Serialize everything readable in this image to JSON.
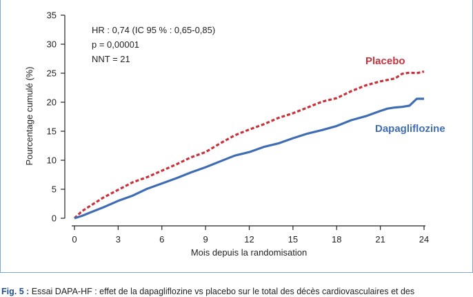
{
  "chart_data": {
    "type": "line",
    "xlabel": "Mois depuis la randomisation",
    "ylabel": "Pourcentage cumulé (%)",
    "xlim": [
      0,
      24
    ],
    "ylim": [
      0,
      35
    ],
    "x_ticks": [
      "0",
      "3",
      "6",
      "9",
      "12",
      "15",
      "18",
      "21",
      "24"
    ],
    "y_ticks": [
      "0",
      "5",
      "10",
      "15",
      "20",
      "25",
      "30",
      "35"
    ],
    "grid": false,
    "annotations": [
      "HR : 0,74 (IC 95 % : 0,65-0,85)",
      "p = 0,00001",
      "NNT = 21"
    ],
    "series": [
      {
        "name": "Placebo",
        "color": "#c8323c",
        "style": "dashed",
        "x": [
          0,
          0.5,
          1,
          1.5,
          2,
          3,
          4,
          5,
          6,
          7,
          8,
          9,
          10,
          11,
          12,
          13,
          14,
          15,
          16,
          17,
          18,
          19,
          20,
          21,
          22,
          22.5,
          23,
          23.5,
          24
        ],
        "y": [
          0,
          1.2,
          2.0,
          2.8,
          3.6,
          4.9,
          6.2,
          7.1,
          8.2,
          9.3,
          10.5,
          11.4,
          12.9,
          14.3,
          15.3,
          16.2,
          17.3,
          18.1,
          19.1,
          20.1,
          20.7,
          21.9,
          22.9,
          23.6,
          24.1,
          24.9,
          25.1,
          25.0,
          25.3
        ]
      },
      {
        "name": "Dapagliflozine",
        "color": "#3f6db3",
        "style": "solid",
        "x": [
          0,
          0.5,
          1,
          2,
          3,
          4,
          5,
          6,
          7,
          8,
          9,
          10,
          11,
          12,
          13,
          14,
          15,
          16,
          17,
          18,
          19,
          20,
          21,
          21.5,
          22,
          22.5,
          23,
          23.5,
          24
        ],
        "y": [
          0,
          0.4,
          0.9,
          1.9,
          3.0,
          3.9,
          5.1,
          6.0,
          6.9,
          7.9,
          8.8,
          9.8,
          10.8,
          11.4,
          12.3,
          12.9,
          13.8,
          14.6,
          15.2,
          15.9,
          16.9,
          17.6,
          18.5,
          18.9,
          19.1,
          19.2,
          19.4,
          20.6,
          20.6
        ]
      }
    ]
  },
  "caption": {
    "bold": "Fig. 5 :",
    "text": " Essai DAPA-HF : effet de la dapagliflozine vs placebo sur le total des décès cardiovasculaires et des"
  }
}
